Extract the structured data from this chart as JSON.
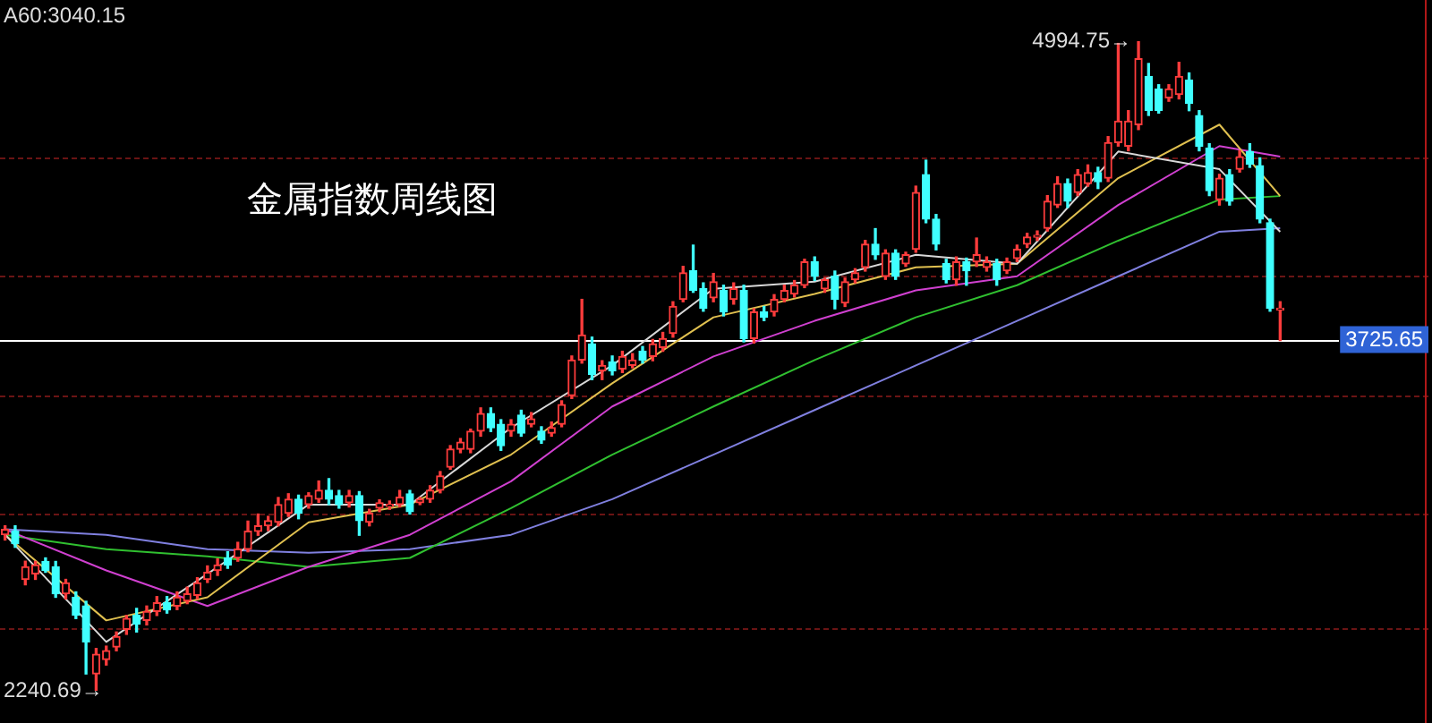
{
  "chart_data": {
    "type": "candlestick",
    "title": "金属指数周线图",
    "categories": [
      null,
      null,
      null,
      null,
      null,
      null,
      null,
      null,
      null,
      null,
      null,
      null,
      null,
      null,
      null,
      null,
      null,
      null,
      null,
      null,
      null,
      null,
      null,
      null,
      null,
      null,
      null,
      null,
      null,
      null,
      null,
      null,
      null,
      null,
      null,
      null,
      null,
      null,
      null,
      null,
      null,
      null,
      null,
      null,
      null,
      null,
      null,
      null,
      null,
      null,
      null,
      null,
      null,
      null,
      null,
      null,
      null,
      null,
      null,
      null,
      null,
      null,
      null,
      null,
      null,
      null,
      null,
      null,
      null,
      null,
      null,
      null,
      null,
      null,
      null,
      null,
      null,
      null,
      null,
      null,
      null,
      null,
      null,
      null,
      null,
      null,
      null,
      null,
      null,
      null,
      null,
      null,
      null,
      null,
      null,
      null,
      null,
      null,
      null,
      null,
      null,
      null,
      null,
      null,
      null,
      null,
      null,
      null,
      null,
      null,
      null,
      null,
      null,
      null,
      null,
      null,
      null,
      null,
      null,
      null,
      null,
      null,
      null,
      null,
      null,
      null,
      null
    ],
    "ohlc": [
      [
        2902,
        2940,
        2880,
        2925
      ],
      [
        2917,
        2940,
        2849,
        2864
      ],
      [
        2713,
        2790,
        2690,
        2766
      ],
      [
        2736,
        2789,
        2713,
        2774
      ],
      [
        2789,
        2804,
        2743,
        2751
      ],
      [
        2766,
        2789,
        2637,
        2652
      ],
      [
        2652,
        2713,
        2630,
        2698
      ],
      [
        2637,
        2660,
        2547,
        2562
      ],
      [
        2600,
        2620,
        2312,
        2448
      ],
      [
        2312,
        2420,
        2240.69,
        2396
      ],
      [
        2373,
        2430,
        2350,
        2411
      ],
      [
        2426,
        2490,
        2410,
        2471
      ],
      [
        2501,
        2560,
        2480,
        2547
      ],
      [
        2562,
        2590,
        2490,
        2524
      ],
      [
        2539,
        2600,
        2520,
        2577
      ],
      [
        2577,
        2640,
        2560,
        2614
      ],
      [
        2614,
        2640,
        2570,
        2584
      ],
      [
        2600,
        2660,
        2585,
        2637
      ],
      [
        2622,
        2680,
        2610,
        2652
      ],
      [
        2645,
        2720,
        2630,
        2698
      ],
      [
        2713,
        2770,
        2700,
        2743
      ],
      [
        2751,
        2800,
        2730,
        2774
      ],
      [
        2804,
        2830,
        2760,
        2774
      ],
      [
        2804,
        2870,
        2790,
        2841
      ],
      [
        2841,
        2960,
        2830,
        2917
      ],
      [
        2917,
        2990,
        2900,
        2940
      ],
      [
        2940,
        2980,
        2920,
        2962
      ],
      [
        2955,
        3060,
        2940,
        3030
      ],
      [
        2993,
        3076,
        2980,
        3053
      ],
      [
        3053,
        3070,
        2970,
        2993
      ],
      [
        3030,
        3080,
        3015,
        3068
      ],
      [
        3053,
        3130,
        3040,
        3091
      ],
      [
        3091,
        3140,
        3030,
        3053
      ],
      [
        3068,
        3090,
        3015,
        3030
      ],
      [
        3038,
        3090,
        3020,
        3068
      ],
      [
        3068,
        3085,
        2900,
        2962
      ],
      [
        2955,
        3010,
        2940,
        2993
      ],
      [
        3015,
        3050,
        3000,
        3038
      ],
      [
        3023,
        3045,
        3010,
        3030
      ],
      [
        3030,
        3090,
        3020,
        3061
      ],
      [
        3076,
        3090,
        2990,
        3000
      ],
      [
        3038,
        3060,
        3030,
        3053
      ],
      [
        3053,
        3110,
        3040,
        3091
      ],
      [
        3091,
        3170,
        3080,
        3151
      ],
      [
        3189,
        3280,
        3180,
        3265
      ],
      [
        3265,
        3310,
        3250,
        3295
      ],
      [
        3265,
        3350,
        3250,
        3341
      ],
      [
        3341,
        3440,
        3320,
        3416
      ],
      [
        3416,
        3440,
        3340,
        3356
      ],
      [
        3371,
        3390,
        3260,
        3280
      ],
      [
        3341,
        3390,
        3320,
        3371
      ],
      [
        3409,
        3430,
        3320,
        3333
      ],
      [
        3371,
        3420,
        3360,
        3393
      ],
      [
        3341,
        3360,
        3290,
        3303
      ],
      [
        3333,
        3380,
        3320,
        3356
      ],
      [
        3371,
        3470,
        3360,
        3454
      ],
      [
        3492,
        3660,
        3480,
        3643
      ],
      [
        3643,
        3900,
        3630,
        3749
      ],
      [
        3711,
        3740,
        3560,
        3582
      ],
      [
        3597,
        3640,
        3560,
        3620
      ],
      [
        3635,
        3660,
        3580,
        3597
      ],
      [
        3605,
        3680,
        3590,
        3658
      ],
      [
        3620,
        3670,
        3610,
        3643
      ],
      [
        3681,
        3700,
        3630,
        3643
      ],
      [
        3658,
        3730,
        3640,
        3711
      ],
      [
        3696,
        3760,
        3680,
        3734
      ],
      [
        3756,
        3890,
        3740,
        3870
      ],
      [
        3900,
        4040,
        3890,
        4013
      ],
      [
        4021,
        4130,
        3930,
        3938
      ],
      [
        3945,
        3970,
        3850,
        3862
      ],
      [
        3907,
        4010,
        3890,
        3975
      ],
      [
        3938,
        3960,
        3830,
        3847
      ],
      [
        3900,
        3970,
        3880,
        3945
      ],
      [
        3938,
        3960,
        3720,
        3734
      ],
      [
        3734,
        3860,
        3715,
        3847
      ],
      [
        3847,
        3870,
        3810,
        3824
      ],
      [
        3847,
        3920,
        3830,
        3900
      ],
      [
        3900,
        3960,
        3890,
        3938
      ],
      [
        3923,
        3980,
        3910,
        3960
      ],
      [
        3960,
        4070,
        3950,
        4059
      ],
      [
        4059,
        4080,
        3980,
        3998
      ],
      [
        3945,
        3990,
        3930,
        3983
      ],
      [
        3998,
        4020,
        3860,
        3900
      ],
      [
        3885,
        3990,
        3870,
        3975
      ],
      [
        3983,
        4030,
        3970,
        4013
      ],
      [
        4036,
        4150,
        4020,
        4134
      ],
      [
        4134,
        4200,
        4070,
        4089
      ],
      [
        3998,
        4110,
        3985,
        4096
      ],
      [
        4096,
        4110,
        3985,
        3998
      ],
      [
        4051,
        4100,
        4040,
        4089
      ],
      [
        4112,
        4380,
        4100,
        4353
      ],
      [
        4429,
        4490,
        4225,
        4240
      ],
      [
        4240,
        4260,
        4110,
        4134
      ],
      [
        4051,
        4070,
        3970,
        3983
      ],
      [
        3983,
        4080,
        3960,
        4059
      ],
      [
        4059,
        4075,
        3960,
        4021
      ],
      [
        4059,
        4160,
        4040,
        4089
      ],
      [
        4036,
        4080,
        4020,
        4059
      ],
      [
        4051,
        4070,
        3960,
        3983
      ],
      [
        4021,
        4075,
        4010,
        4059
      ],
      [
        4074,
        4130,
        4060,
        4112
      ],
      [
        4134,
        4180,
        4120,
        4164
      ],
      [
        4164,
        4190,
        4150,
        4172
      ],
      [
        4202,
        4340,
        4190,
        4316
      ],
      [
        4300,
        4420,
        4290,
        4391
      ],
      [
        4391,
        4410,
        4290,
        4316
      ],
      [
        4353,
        4450,
        4340,
        4429
      ],
      [
        4391,
        4470,
        4380,
        4437
      ],
      [
        4437,
        4460,
        4370,
        4399
      ],
      [
        4414,
        4590,
        4400,
        4565
      ],
      [
        4565,
        4985,
        4550,
        4656
      ],
      [
        4550,
        4700,
        4530,
        4656
      ],
      [
        4641,
        4994.75,
        4620,
        4920
      ],
      [
        4845,
        4900,
        4680,
        4701
      ],
      [
        4792,
        4810,
        4690,
        4701
      ],
      [
        4754,
        4810,
        4740,
        4792
      ],
      [
        4769,
        4905,
        4750,
        4845
      ],
      [
        4830,
        4860,
        4700,
        4731
      ],
      [
        4679,
        4700,
        4530,
        4550
      ],
      [
        4542,
        4560,
        4340,
        4361
      ],
      [
        4323,
        4430,
        4300,
        4414
      ],
      [
        4429,
        4450,
        4300,
        4316
      ],
      [
        4452,
        4530,
        4440,
        4505
      ],
      [
        4527,
        4560,
        4460,
        4474
      ],
      [
        4467,
        4500,
        4225,
        4240
      ],
      [
        4225,
        4240,
        3850,
        3862
      ],
      [
        3855,
        3890,
        3725.65,
        3862
      ]
    ],
    "colors": [
      "#ff3c3c",
      "#40ffff",
      "#ff3c3c",
      "#ff3c3c",
      "#40ffff",
      "#40ffff",
      "#ff3c3c",
      "#40ffff",
      "#40ffff",
      "#ff3c3c",
      "#ff3c3c",
      "#ff3c3c",
      "#ff3c3c",
      "#40ffff",
      "#ff3c3c",
      "#ff3c3c",
      "#40ffff",
      "#ff3c3c",
      "#ff3c3c",
      "#ff3c3c",
      "#ff3c3c",
      "#ff3c3c",
      "#40ffff",
      "#ff3c3c",
      "#ff3c3c",
      "#ff3c3c",
      "#ff3c3c",
      "#ff3c3c",
      "#ff3c3c",
      "#40ffff",
      "#ff3c3c",
      "#ff3c3c",
      "#40ffff",
      "#40ffff",
      "#ff3c3c",
      "#40ffff",
      "#ff3c3c",
      "#ff3c3c",
      "#ff3c3c",
      "#ff3c3c",
      "#40ffff",
      "#ff3c3c",
      "#ff3c3c",
      "#ff3c3c",
      "#ff3c3c",
      "#ff3c3c",
      "#ff3c3c",
      "#ff3c3c",
      "#40ffff",
      "#40ffff",
      "#ff3c3c",
      "#40ffff",
      "#ff3c3c",
      "#40ffff",
      "#ff3c3c",
      "#ff3c3c",
      "#ff3c3c",
      "#ff3c3c",
      "#40ffff",
      "#ff3c3c",
      "#40ffff",
      "#ff3c3c",
      "#ff3c3c",
      "#40ffff",
      "#ff3c3c",
      "#ff3c3c",
      "#ff3c3c",
      "#ff3c3c",
      "#40ffff",
      "#40ffff",
      "#ff3c3c",
      "#40ffff",
      "#ff3c3c",
      "#40ffff",
      "#ff3c3c",
      "#40ffff",
      "#ff3c3c",
      "#ff3c3c",
      "#ff3c3c",
      "#ff3c3c",
      "#40ffff",
      "#ff3c3c",
      "#40ffff",
      "#ff3c3c",
      "#ff3c3c",
      "#ff3c3c",
      "#40ffff",
      "#ff3c3c",
      "#40ffff",
      "#ff3c3c",
      "#ff3c3c",
      "#40ffff",
      "#40ffff",
      "#40ffff",
      "#ff3c3c",
      "#40ffff",
      "#ff3c3c",
      "#ff3c3c",
      "#40ffff",
      "#ff3c3c",
      "#ff3c3c",
      "#ff3c3c",
      "#ff3c3c",
      "#ff3c3c",
      "#ff3c3c",
      "#40ffff",
      "#ff3c3c",
      "#ff3c3c",
      "#40ffff",
      "#ff3c3c",
      "#ff3c3c",
      "#ff3c3c",
      "#ff3c3c",
      "#40ffff",
      "#40ffff",
      "#ff3c3c",
      "#ff3c3c",
      "#40ffff",
      "#40ffff",
      "#40ffff",
      "#ff3c3c",
      "#40ffff",
      "#ff3c3c",
      "#40ffff",
      "#40ffff",
      "#40ffff",
      "#ff3c3c"
    ],
    "series": [
      {
        "type": "line",
        "color": "#d8d8d8",
        "values": [
          2902,
          null,
          null,
          null,
          null,
          null,
          null,
          null,
          null,
          null,
          2448,
          null,
          null,
          null,
          null,
          null,
          null,
          null,
          null,
          null,
          2736,
          null,
          null,
          null,
          null,
          null,
          null,
          null,
          null,
          null,
          3030,
          null,
          null,
          null,
          null,
          null,
          null,
          null,
          null,
          null,
          3030,
          null,
          null,
          null,
          null,
          null,
          null,
          null,
          null,
          null,
          3356,
          null,
          null,
          null,
          null,
          null,
          null,
          null,
          null,
          null,
          3620,
          null,
          null,
          null,
          null,
          null,
          null,
          null,
          null,
          null,
          3945,
          null,
          null,
          null,
          null,
          null,
          null,
          null,
          null,
          null,
          3975,
          null,
          null,
          null,
          null,
          null,
          null,
          null,
          null,
          null,
          4089,
          null,
          null,
          null,
          null,
          null,
          null,
          null,
          null,
          null,
          4051,
          null,
          null,
          null,
          null,
          null,
          null,
          null,
          null,
          null,
          4527,
          null,
          null,
          null,
          null,
          null,
          null,
          null,
          null,
          null,
          4452,
          null,
          null,
          null,
          null,
          null,
          4187
        ]
      },
      {
        "type": "line",
        "color": "#e0c050",
        "values": [
          2902,
          null,
          null,
          null,
          null,
          null,
          null,
          null,
          null,
          null,
          2539,
          null,
          null,
          null,
          null,
          null,
          null,
          null,
          null,
          null,
          2637,
          null,
          null,
          null,
          null,
          null,
          null,
          null,
          null,
          null,
          2955,
          null,
          null,
          null,
          null,
          null,
          null,
          null,
          null,
          null,
          3030,
          null,
          null,
          null,
          null,
          null,
          null,
          null,
          null,
          null,
          3242,
          null,
          null,
          null,
          null,
          null,
          null,
          null,
          null,
          null,
          3544,
          null,
          null,
          null,
          null,
          null,
          null,
          null,
          null,
          null,
          3824,
          null,
          null,
          null,
          null,
          null,
          null,
          null,
          null,
          null,
          3923,
          null,
          null,
          null,
          null,
          null,
          null,
          null,
          null,
          null,
          4036,
          null,
          null,
          null,
          null,
          null,
          null,
          null,
          null,
          null,
          4051,
          null,
          null,
          null,
          null,
          null,
          null,
          null,
          null,
          null,
          4414,
          null,
          null,
          null,
          null,
          null,
          null,
          null,
          null,
          null,
          4641,
          null,
          null,
          null,
          null,
          null,
          4338
        ]
      },
      {
        "type": "line",
        "color": "#d040d0",
        "values": [
          2925,
          null,
          null,
          null,
          null,
          null,
          null,
          null,
          null,
          null,
          2751,
          null,
          null,
          null,
          null,
          null,
          null,
          null,
          null,
          null,
          2600,
          null,
          null,
          null,
          null,
          null,
          null,
          null,
          null,
          null,
          2766,
          null,
          null,
          null,
          null,
          null,
          null,
          null,
          null,
          null,
          2902,
          null,
          null,
          null,
          null,
          null,
          null,
          null,
          null,
          null,
          3129,
          null,
          null,
          null,
          null,
          null,
          null,
          null,
          null,
          null,
          3446,
          null,
          null,
          null,
          null,
          null,
          null,
          null,
          null,
          null,
          3658,
          null,
          null,
          null,
          null,
          null,
          null,
          null,
          null,
          null,
          3809,
          null,
          null,
          null,
          null,
          null,
          null,
          null,
          null,
          null,
          3938,
          null,
          null,
          null,
          null,
          null,
          null,
          null,
          null,
          null,
          3998,
          null,
          null,
          null,
          null,
          null,
          null,
          null,
          null,
          null,
          4300,
          null,
          null,
          null,
          null,
          null,
          null,
          null,
          null,
          null,
          4550,
          null,
          null,
          null,
          null,
          null,
          4505
        ]
      },
      {
        "type": "line",
        "color": "#30c030",
        "values": [
          2902,
          null,
          null,
          null,
          null,
          null,
          null,
          null,
          null,
          null,
          2841,
          null,
          null,
          null,
          null,
          null,
          null,
          null,
          null,
          null,
          2811,
          null,
          null,
          null,
          null,
          null,
          null,
          null,
          null,
          null,
          2766,
          null,
          null,
          null,
          null,
          null,
          null,
          null,
          null,
          null,
          2804,
          null,
          null,
          null,
          null,
          null,
          null,
          null,
          null,
          null,
          3015,
          null,
          null,
          null,
          null,
          null,
          null,
          null,
          null,
          null,
          3242,
          null,
          null,
          null,
          null,
          null,
          null,
          null,
          null,
          null,
          3446,
          null,
          null,
          null,
          null,
          null,
          null,
          null,
          null,
          null,
          3643,
          null,
          null,
          null,
          null,
          null,
          null,
          null,
          null,
          null,
          3824,
          null,
          null,
          null,
          null,
          null,
          null,
          null,
          null,
          null,
          3960,
          null,
          null,
          null,
          null,
          null,
          null,
          null,
          null,
          null,
          4149,
          null,
          null,
          null,
          null,
          null,
          null,
          null,
          null,
          null,
          4323,
          null,
          null,
          null,
          null,
          null,
          4338
        ]
      },
      {
        "type": "line",
        "color": "#8080e0",
        "values": [
          2925,
          null,
          null,
          null,
          null,
          null,
          null,
          null,
          null,
          null,
          2902,
          null,
          null,
          null,
          null,
          null,
          null,
          null,
          null,
          null,
          2841,
          null,
          null,
          null,
          null,
          null,
          null,
          null,
          null,
          null,
          2826,
          null,
          null,
          null,
          null,
          null,
          null,
          null,
          null,
          null,
          2841,
          null,
          null,
          null,
          null,
          null,
          null,
          null,
          null,
          null,
          2902,
          null,
          null,
          null,
          null,
          null,
          null,
          null,
          null,
          null,
          3053,
          null,
          null,
          null,
          null,
          null,
          null,
          null,
          null,
          null,
          3242,
          null,
          null,
          null,
          null,
          null,
          null,
          null,
          null,
          null,
          3431,
          null,
          null,
          null,
          null,
          null,
          null,
          null,
          null,
          null,
          3620,
          null,
          null,
          null,
          null,
          null,
          null,
          null,
          null,
          null,
          3809,
          null,
          null,
          null,
          null,
          null,
          null,
          null,
          null,
          null,
          3998,
          null,
          null,
          null,
          null,
          null,
          null,
          null,
          null,
          null,
          4187,
          null,
          null,
          null,
          null,
          null,
          4202
        ]
      }
    ],
    "yticks": [
      {
        "value": 4505,
        "label": null
      },
      {
        "value": 3998,
        "label": null
      },
      {
        "value": 3492,
        "label": null
      },
      {
        "value": 2993,
        "label": null
      },
      {
        "value": 2509,
        "label": null
      }
    ],
    "grid": "y",
    "legend": false,
    "marker": "none",
    "ref_lines": [
      {
        "axis": "y",
        "value": 3725.65,
        "label": "3725.65",
        "color": "#ffffff"
      }
    ],
    "annotations": [
      "A60:3040.15",
      "4994.75→",
      "2240.69→"
    ]
  }
}
